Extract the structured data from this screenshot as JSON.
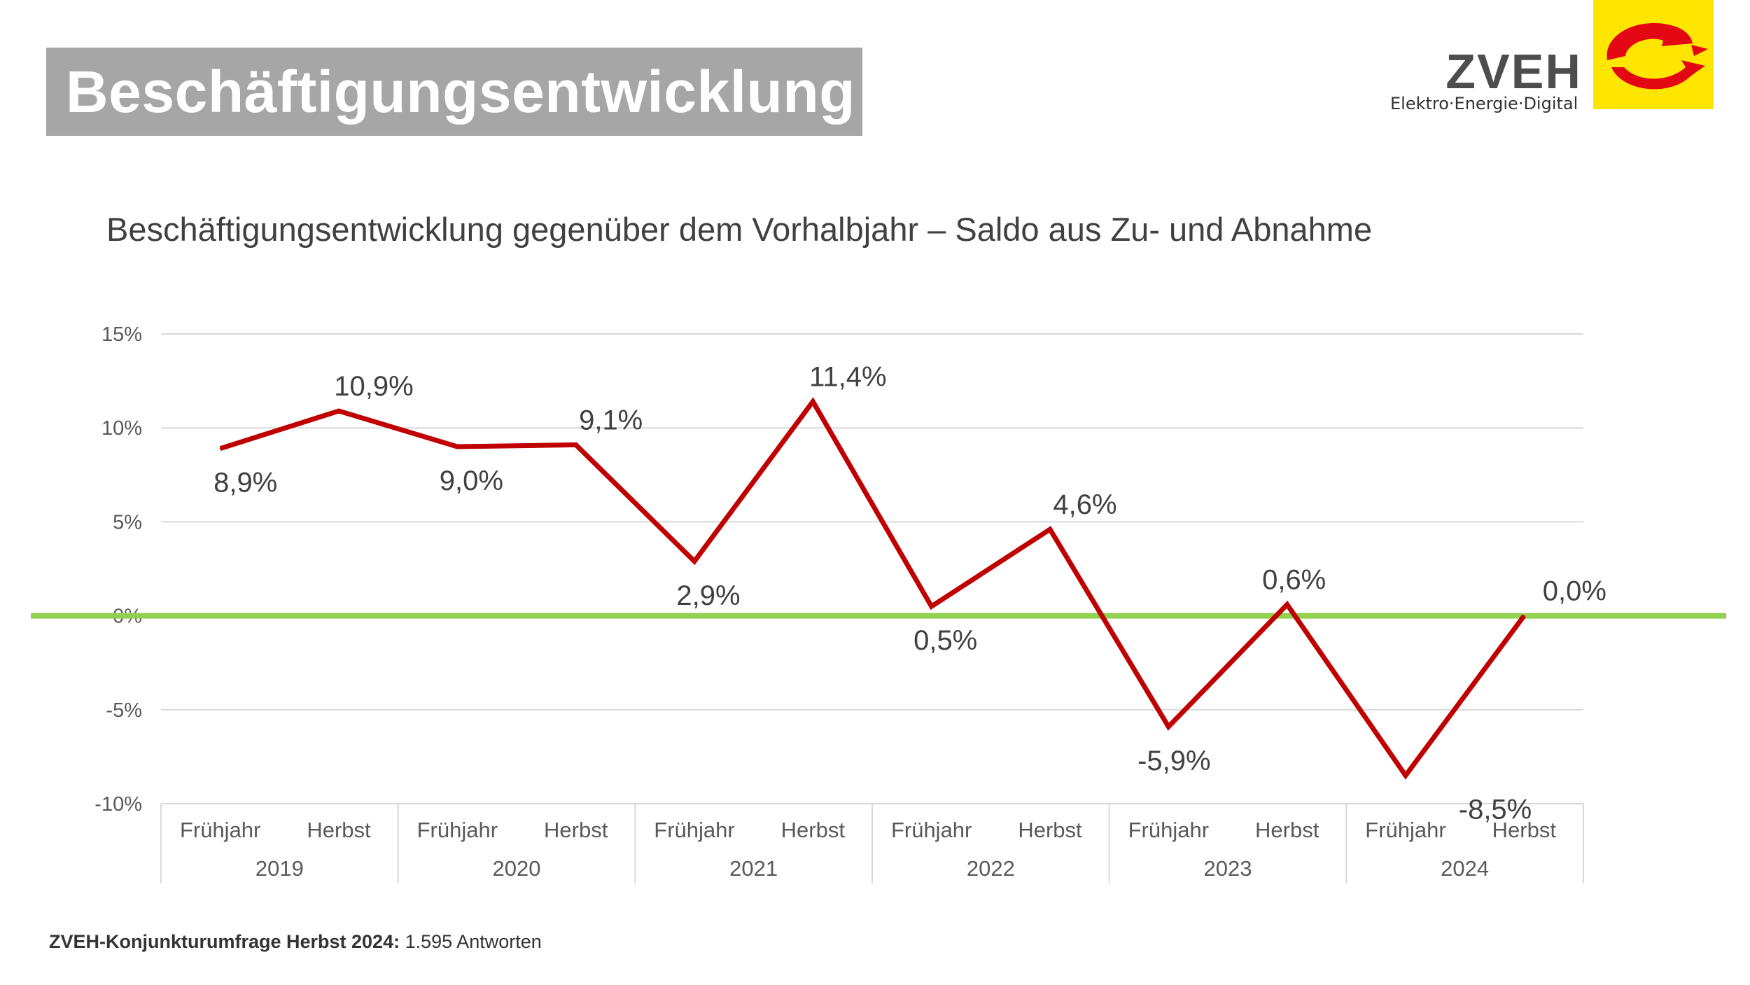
{
  "header": {
    "title": "Beschäftigungsentwicklung"
  },
  "logo": {
    "name": "ZVEH",
    "tagline": "Elektro·Energie·Digital",
    "colors": {
      "square": "#ffe600",
      "swoosh": "#e30613",
      "text": "#4d4d4d"
    }
  },
  "footer": {
    "source_bold": "ZVEH-Konjunkturumfrage Herbst 2024:",
    "source_rest": "1.595 Antworten"
  },
  "chart_data": {
    "type": "line",
    "title": "Beschäftigungsentwicklung gegenüber dem Vorhalbjahr – Saldo aus Zu- und Abnahme",
    "years": [
      "2019",
      "2020",
      "2021",
      "2022",
      "2023",
      "2024"
    ],
    "categories": [
      "Frühjahr",
      "Herbst",
      "Frühjahr",
      "Herbst",
      "Frühjahr",
      "Herbst",
      "Frühjahr",
      "Herbst",
      "Frühjahr",
      "Herbst",
      "Frühjahr",
      "Herbst"
    ],
    "series": [
      {
        "name": "Saldo",
        "color": "#c00000",
        "values": [
          8.9,
          10.9,
          9.0,
          9.1,
          2.9,
          11.4,
          0.5,
          4.6,
          -5.9,
          0.6,
          -8.5,
          0.0
        ],
        "labels": [
          "8,9%",
          "10,9%",
          "9,0%",
          "9,1%",
          "2,9%",
          "11,4%",
          "0,5%",
          "4,6%",
          "-5,9%",
          "0,6%",
          "-8,5%",
          "0,0%"
        ]
      }
    ],
    "y_ticks": [
      15,
      10,
      5,
      0,
      -5,
      -10
    ],
    "y_tick_labels": [
      "15%",
      "10%",
      "5%",
      "0%",
      "-5%",
      "-10%"
    ],
    "ylim": [
      -10,
      15
    ],
    "grid": true,
    "zero_line_color": "#92d050",
    "xlabel": "",
    "ylabel": ""
  }
}
